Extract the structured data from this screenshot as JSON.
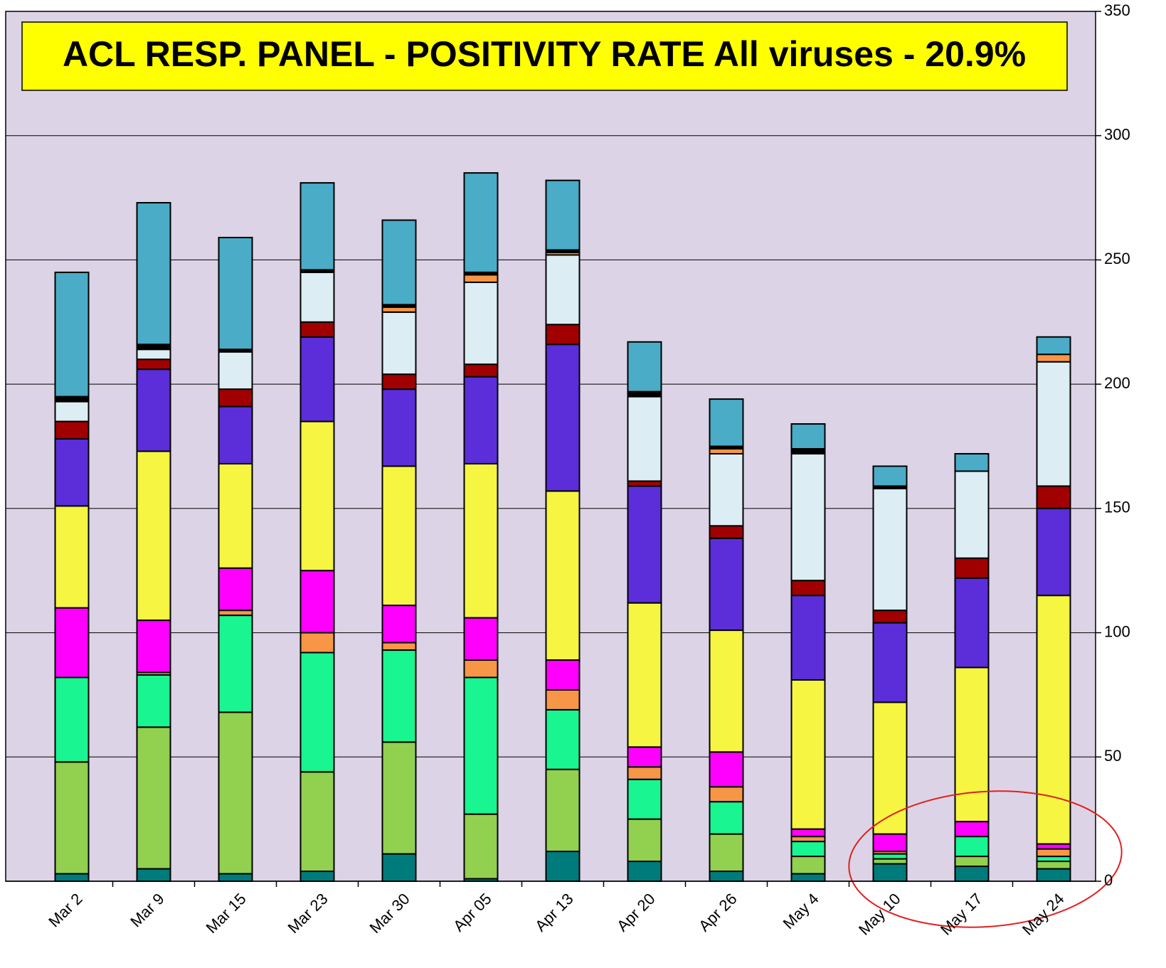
{
  "chart_data": {
    "type": "stacked-bar",
    "title": "ACL RESP. PANEL -  POSITIVITY RATE All viruses - 20.9%",
    "categories": [
      "Mar 2",
      "Mar 9",
      "Mar 15",
      "Mar 23",
      "Mar 30",
      "Apr 05",
      "Apr 13",
      "Apr 20",
      "Apr 26",
      "May 4",
      "May 10",
      "May 17",
      "May 24"
    ],
    "series": [
      {
        "color": "#007b7b",
        "values": [
          3,
          5,
          3,
          4,
          11,
          1,
          12,
          8,
          4,
          3,
          7,
          6,
          5
        ]
      },
      {
        "color": "#92d050",
        "values": [
          45,
          57,
          65,
          40,
          45,
          26,
          33,
          17,
          15,
          7,
          2,
          4,
          3
        ]
      },
      {
        "color": "#19f590",
        "values": [
          34,
          21,
          39,
          48,
          37,
          55,
          24,
          16,
          13,
          6,
          2,
          8,
          2
        ]
      },
      {
        "color": "#f79646",
        "values": [
          0,
          1,
          2,
          8,
          3,
          7,
          8,
          5,
          6,
          2,
          1,
          0,
          3
        ]
      },
      {
        "color": "#ff00ff",
        "values": [
          28,
          21,
          17,
          25,
          15,
          17,
          12,
          8,
          14,
          3,
          7,
          6,
          2
        ]
      },
      {
        "color": "#f5f542",
        "values": [
          41,
          68,
          42,
          60,
          56,
          62,
          68,
          58,
          49,
          60,
          53,
          62,
          100
        ]
      },
      {
        "color": "#5b2ed9",
        "values": [
          27,
          33,
          23,
          34,
          31,
          35,
          59,
          47,
          37,
          34,
          32,
          36,
          35
        ]
      },
      {
        "color": "#a00000",
        "values": [
          7,
          4,
          7,
          6,
          6,
          5,
          8,
          2,
          5,
          6,
          5,
          8,
          9
        ]
      },
      {
        "color": "#dcedf4",
        "values": [
          8,
          4,
          15,
          20,
          25,
          33,
          28,
          34,
          29,
          51,
          49,
          35,
          50
        ]
      },
      {
        "color": "#f79646",
        "values": [
          0,
          0,
          0,
          0,
          2,
          3,
          1,
          0,
          2,
          0,
          0,
          0,
          3
        ]
      },
      {
        "color": "#000000",
        "values": [
          2,
          2,
          1,
          1,
          1,
          1,
          1,
          2,
          1,
          2,
          1,
          0,
          0
        ]
      },
      {
        "color": "#4aacc6",
        "values": [
          50,
          57,
          45,
          35,
          34,
          40,
          28,
          20,
          19,
          10,
          8,
          7,
          7
        ]
      }
    ],
    "ylim": [
      0,
      350
    ],
    "yticks": [
      0,
      50,
      100,
      150,
      200,
      250,
      300,
      350
    ],
    "grid": true
  }
}
